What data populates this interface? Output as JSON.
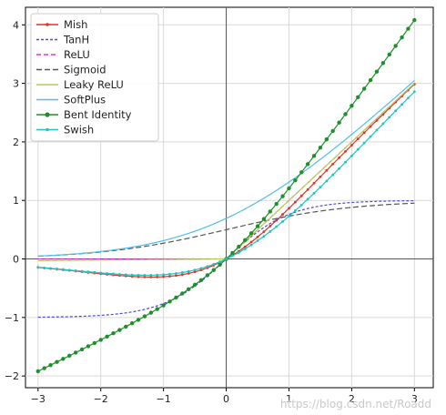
{
  "chart_data": {
    "type": "line",
    "title": "",
    "xlabel": "",
    "ylabel": "",
    "xlim": [
      -3.2,
      3.3
    ],
    "ylim": [
      -2.2,
      4.3
    ],
    "xticks": [
      -3,
      -2,
      -1,
      0,
      1,
      2,
      3
    ],
    "yticks": [
      -2,
      -1,
      0,
      1,
      2,
      3,
      4
    ],
    "xtick_labels": [
      "−3",
      "−2",
      "−1",
      "0",
      "1",
      "2",
      "3"
    ],
    "ytick_labels": [
      "−2",
      "−1",
      "0",
      "1",
      "2",
      "3",
      "4"
    ],
    "grid": true,
    "axes_through_origin": true,
    "legend_position": "top-left",
    "x_range": [
      -3,
      3
    ],
    "series": [
      {
        "name": "Mish",
        "color": "#e0332a",
        "dash": "",
        "marker": "circle",
        "function": "mish"
      },
      {
        "name": "TanH",
        "color": "#4b4bd6",
        "dash": "3,2",
        "marker": "",
        "function": "tanh"
      },
      {
        "name": "ReLU",
        "color": "#d23bd2",
        "dash": "5,3",
        "marker": "",
        "function": "relu"
      },
      {
        "name": "Sigmoid",
        "color": "#555555",
        "dash": "6,3",
        "marker": "",
        "function": "sigmoid"
      },
      {
        "name": "Leaky ReLU",
        "color": "#b7cc57",
        "dash": "",
        "marker": "",
        "function": "leaky_relu"
      },
      {
        "name": "SoftPlus",
        "color": "#4fc0e8",
        "dash": "",
        "marker": "",
        "function": "softplus"
      },
      {
        "name": "Bent Identity",
        "color": "#1e8f2a",
        "dash": "",
        "marker": "circle-large",
        "function": "bent_identity"
      },
      {
        "name": "Swish",
        "color": "#1fc4c4",
        "dash": "",
        "marker": "circle",
        "function": "swish"
      }
    ]
  },
  "watermark": "https://blog.csdn.net/Roadd"
}
